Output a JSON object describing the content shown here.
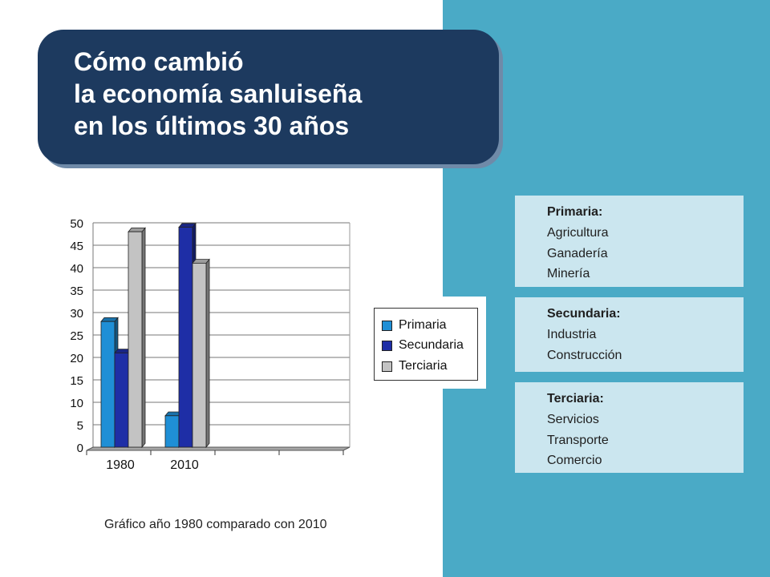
{
  "title": {
    "lines": [
      "Cómo cambió",
      "la economía sanluiseña",
      "en los últimos 30 años"
    ]
  },
  "sectors": [
    {
      "heading": "Primaria:",
      "items": [
        "Agricultura",
        "Ganadería",
        "Minería"
      ]
    },
    {
      "heading": "Secundaria:",
      "items": [
        "Industria",
        "Construcción"
      ]
    },
    {
      "heading": "Terciaria:",
      "items": [
        "Servicios",
        "Transporte",
        "Comercio"
      ]
    }
  ],
  "caption": "Gráfico año 1980 comparado con 2010",
  "colors": {
    "panel": "#4aaac6",
    "title_bg": "#1d3a5f",
    "info_bg": "#cbe6ef",
    "primaria": "#1f8fd6",
    "secundaria": "#1e2ea6",
    "terciaria": "#c3c3c3"
  },
  "chart_data": {
    "type": "bar",
    "categories": [
      "1980",
      "2010"
    ],
    "series": [
      {
        "name": "Primaria",
        "values": [
          28,
          7
        ]
      },
      {
        "name": "Secundaria",
        "values": [
          21,
          49
        ]
      },
      {
        "name": "Terciaria",
        "values": [
          48,
          41
        ]
      }
    ],
    "ylim": [
      0,
      50
    ],
    "yticks": [
      0,
      5,
      10,
      15,
      20,
      25,
      30,
      35,
      40,
      45,
      50
    ],
    "grid": true,
    "style": "3d",
    "legend": "right"
  }
}
